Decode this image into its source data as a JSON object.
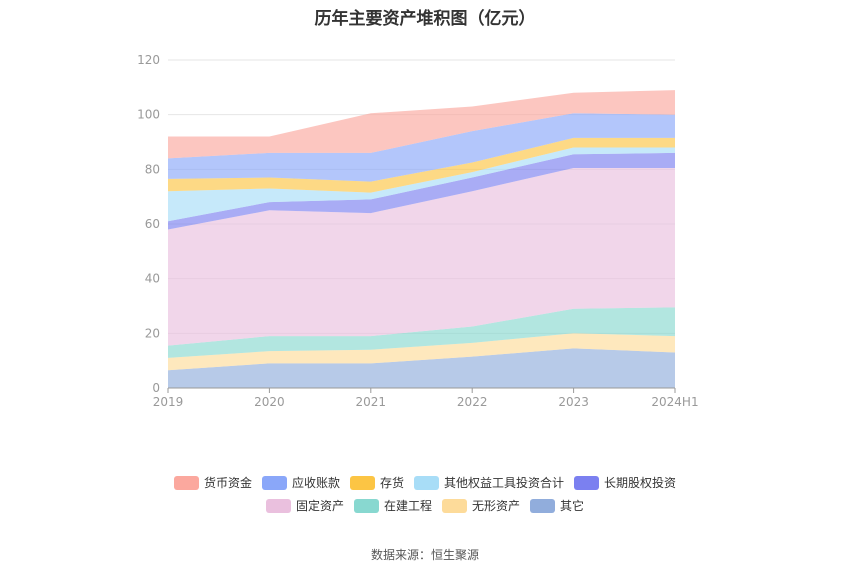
{
  "chart_data": {
    "type": "area",
    "stacked": true,
    "title": "历年主要资产堆积图（亿元）",
    "categories": [
      "2019",
      "2020",
      "2021",
      "2022",
      "2023",
      "2024H1"
    ],
    "ylim": [
      0,
      120
    ],
    "yticks": [
      0,
      20,
      40,
      60,
      80,
      100,
      120
    ],
    "grid": true,
    "legend_position": "bottom",
    "series": [
      {
        "name": "其它",
        "color": "#91ADDC",
        "values": [
          6.5,
          9.0,
          9.0,
          11.5,
          14.5,
          13.0
        ]
      },
      {
        "name": "无形资产",
        "color": "#FDDB9A",
        "values": [
          4.5,
          4.5,
          5.0,
          5.0,
          5.5,
          6.0
        ]
      },
      {
        "name": "在建工程",
        "color": "#88D8D0",
        "values": [
          4.5,
          5.5,
          5.0,
          6.0,
          9.0,
          10.5
        ]
      },
      {
        "name": "固定资产",
        "color": "#EAC0DE",
        "values": [
          42.5,
          46.0,
          45.0,
          49.5,
          51.5,
          51.0
        ]
      },
      {
        "name": "长期股权投资",
        "color": "#7B80F0",
        "values": [
          3.0,
          3.0,
          5.0,
          5.0,
          5.0,
          5.5
        ]
      },
      {
        "name": "其他权益工具投资合计",
        "color": "#A8DDF7",
        "values": [
          11.0,
          5.0,
          2.5,
          2.0,
          2.5,
          2.0
        ]
      },
      {
        "name": "存货",
        "color": "#FCC544",
        "values": [
          4.5,
          4.0,
          4.0,
          3.5,
          3.5,
          3.5
        ]
      },
      {
        "name": "应收账款",
        "color": "#8AA7F9",
        "values": [
          7.5,
          9.0,
          10.5,
          11.5,
          9.0,
          8.5
        ]
      },
      {
        "name": "货币资金",
        "color": "#FBA89E",
        "values": [
          8.0,
          6.0,
          14.5,
          9.0,
          7.5,
          9.0
        ]
      }
    ]
  },
  "legend_rows": [
    [
      {
        "name": "货币资金",
        "color": "#FBA89E"
      },
      {
        "name": "应收账款",
        "color": "#8AA7F9"
      },
      {
        "name": "存货",
        "color": "#FCC544"
      },
      {
        "name": "其他权益工具投资合计",
        "color": "#A8DDF7"
      },
      {
        "name": "长期股权投资",
        "color": "#7B80F0"
      }
    ],
    [
      {
        "name": "固定资产",
        "color": "#EAC0DE"
      },
      {
        "name": "在建工程",
        "color": "#88D8D0"
      },
      {
        "name": "无形资产",
        "color": "#FDDB9A"
      },
      {
        "name": "其它",
        "color": "#91ADDC"
      }
    ]
  ],
  "source": "数据来源：恒生聚源"
}
